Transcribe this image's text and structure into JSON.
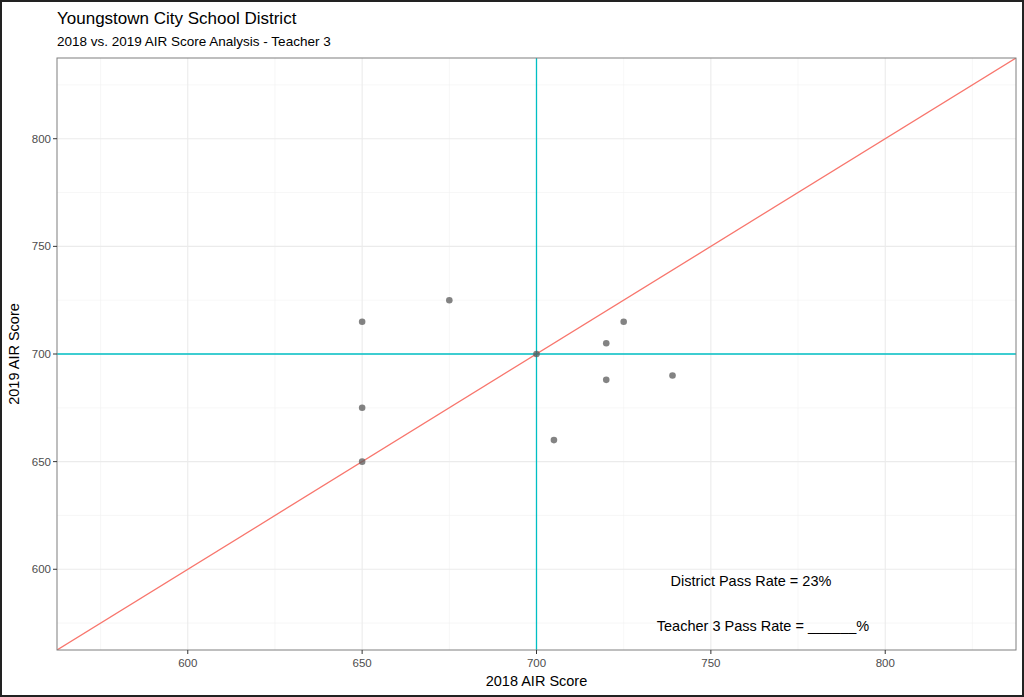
{
  "chart_data": {
    "type": "scatter",
    "title": "Youngstown City School District",
    "subtitle": "2018 vs. 2019 AIR Score Analysis - Teacher 3",
    "x_label": "2018 AIR Score",
    "y_label": "2019 AIR Score",
    "x": [
      650,
      650,
      650,
      675,
      700,
      705,
      720,
      720,
      725,
      739
    ],
    "values": [
      715,
      675,
      650,
      725,
      700,
      660,
      705,
      688,
      715,
      690
    ],
    "color": "#595959",
    "marker": "circle",
    "xlim": [
      562.5,
      837.5
    ],
    "ylim": [
      562.5,
      837.5
    ],
    "xticks": [
      600,
      650,
      700,
      750,
      800
    ],
    "yticks": [
      600,
      650,
      700,
      750,
      800
    ],
    "grid": true,
    "reference_lines": [
      {
        "x": [
          562.5,
          837.5
        ],
        "values": [
          562.5,
          837.5
        ],
        "color": "#f8766d"
      },
      {
        "x": [
          700,
          700
        ],
        "values": [
          562.5,
          837.5
        ],
        "color": "#00bfc4"
      },
      {
        "x": [
          562.5,
          837.5
        ],
        "values": [
          700,
          700
        ],
        "color": "#00bfc4"
      }
    ],
    "annotations": [
      "District Pass Rate = 23%",
      "Teacher 3 Pass Rate = ______%"
    ]
  }
}
